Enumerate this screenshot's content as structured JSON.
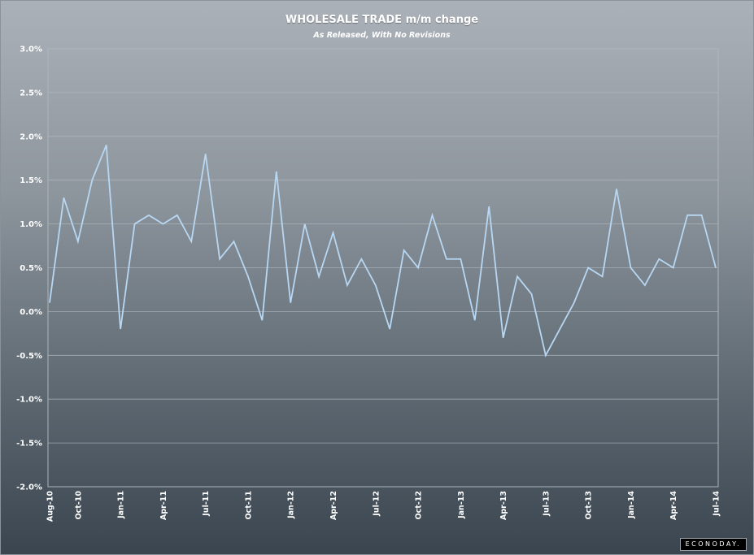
{
  "chart_data": {
    "type": "line",
    "title": "WHOLESALE TRADE m/m change",
    "subtitle": "As Released, With No Revisions",
    "xlabel": "",
    "ylabel": "",
    "ylim": [
      -2.0,
      3.0
    ],
    "yticks": [
      3.0,
      2.5,
      2.0,
      1.5,
      1.0,
      0.5,
      0.0,
      -0.5,
      -1.0,
      -1.5,
      -2.0
    ],
    "ytick_labels": [
      "3.0%",
      "2.5%",
      "2.0%",
      "1.5%",
      "1.0%",
      "0.5%",
      "0.0%",
      "-0.5%",
      "-1.0%",
      "-1.5%",
      "-2.0%"
    ],
    "grid": true,
    "line_color": "#b8d7f2",
    "x_tick_labels": [
      {
        "index": 0,
        "label": "Aug-10"
      },
      {
        "index": 2,
        "label": "Oct-10"
      },
      {
        "index": 5,
        "label": "Jan-11"
      },
      {
        "index": 8,
        "label": "Apr-11"
      },
      {
        "index": 11,
        "label": "Jul-11"
      },
      {
        "index": 14,
        "label": "Oct-11"
      },
      {
        "index": 17,
        "label": "Jan-12"
      },
      {
        "index": 20,
        "label": "Apr-12"
      },
      {
        "index": 23,
        "label": "Jul-12"
      },
      {
        "index": 26,
        "label": "Oct-12"
      },
      {
        "index": 29,
        "label": "Jan-13"
      },
      {
        "index": 32,
        "label": "Apr-13"
      },
      {
        "index": 35,
        "label": "Jul-13"
      },
      {
        "index": 38,
        "label": "Oct-13"
      },
      {
        "index": 41,
        "label": "Jan-14"
      },
      {
        "index": 44,
        "label": "Apr-14"
      },
      {
        "index": 47,
        "label": "Jul-14"
      }
    ],
    "series": [
      {
        "name": "Wholesale trade m/m change",
        "values": [
          0.1,
          1.3,
          0.8,
          1.5,
          1.9,
          -0.2,
          1.0,
          1.1,
          1.0,
          1.1,
          0.8,
          1.8,
          0.6,
          0.8,
          0.4,
          -0.1,
          1.6,
          0.1,
          1.0,
          0.4,
          0.9,
          0.3,
          0.6,
          0.3,
          -0.2,
          0.7,
          0.5,
          1.1,
          0.6,
          0.6,
          -0.1,
          1.2,
          -0.3,
          0.4,
          0.2,
          -0.5,
          -0.2,
          0.1,
          0.5,
          0.4,
          1.4,
          0.5,
          0.3,
          0.6,
          0.5,
          1.1,
          1.1,
          0.5
        ]
      }
    ]
  },
  "branding": {
    "logo_text": "ECONODAY."
  }
}
